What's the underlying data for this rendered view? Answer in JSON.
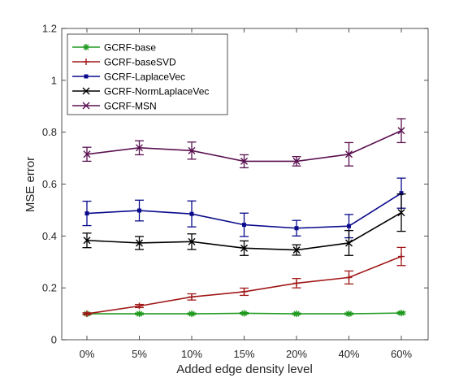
{
  "chart_data": {
    "type": "line",
    "xlabel": "Added edge density level",
    "ylabel": "MSE error",
    "categories": [
      "0%",
      "5%",
      "10%",
      "15%",
      "20%",
      "40%",
      "60%"
    ],
    "ylim": [
      0,
      1.2
    ],
    "yticks": [
      "0",
      "0.2",
      "0.4",
      "0.6",
      "0.8",
      "1",
      "1.2"
    ],
    "grid": false,
    "legend_position": "top-left",
    "error_bars": true,
    "series": [
      {
        "name": "GCRF-base",
        "color": "#1f9a1f",
        "marker": "asterisk",
        "values": [
          0.1,
          0.1,
          0.1,
          0.102,
          0.1,
          0.1,
          0.103
        ],
        "errors": [
          0.003,
          0.003,
          0.003,
          0.003,
          0.003,
          0.003,
          0.004
        ]
      },
      {
        "name": "GCRF-baseSVD",
        "color": "#a01818",
        "marker": "plus",
        "values": [
          0.1,
          0.13,
          0.165,
          0.185,
          0.218,
          0.24,
          0.321
        ],
        "errors": [
          0.004,
          0.006,
          0.012,
          0.014,
          0.018,
          0.025,
          0.035
        ]
      },
      {
        "name": "GCRF-LaplaceVec",
        "color": "#0a0a8c",
        "marker": "dot",
        "values": [
          0.487,
          0.498,
          0.485,
          0.443,
          0.43,
          0.438,
          0.565
        ],
        "errors": [
          0.047,
          0.04,
          0.05,
          0.045,
          0.03,
          0.045,
          0.058
        ]
      },
      {
        "name": "GCRF-NormLaplaceVec",
        "color": "#000000",
        "marker": "cross",
        "values": [
          0.383,
          0.373,
          0.378,
          0.353,
          0.346,
          0.373,
          0.49
        ],
        "errors": [
          0.028,
          0.025,
          0.03,
          0.028,
          0.02,
          0.048,
          0.072
        ]
      },
      {
        "name": "GCRF-MSN",
        "color": "#5a1050",
        "marker": "cross",
        "values": [
          0.715,
          0.74,
          0.729,
          0.688,
          0.688,
          0.715,
          0.806
        ],
        "errors": [
          0.027,
          0.027,
          0.033,
          0.025,
          0.018,
          0.045,
          0.046
        ]
      }
    ]
  }
}
